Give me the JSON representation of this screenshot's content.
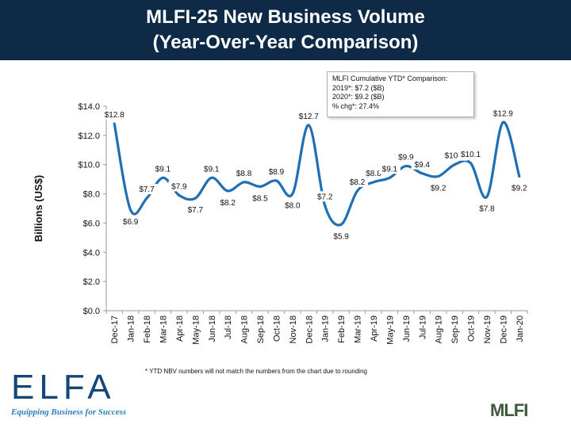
{
  "header": {
    "title_line1": "MLFI-25 New Business Volume",
    "title_line2": "(Year-Over-Year Comparison)",
    "bg_color": "#0e2a47"
  },
  "note": {
    "line1": "MLFI Cumulative YTD* Comparison:",
    "line2": "2019*: $7.2 ($B)",
    "line3": "2020*: $9.2 ($B)",
    "line4": "% chg*: 27.4%"
  },
  "footnote": "*  YTD NBV numbers will not match the numbers from the chart due to rounding",
  "logos": {
    "elfa_text": "ELFA",
    "elfa_tagline": "Equipping Business for Success",
    "mlfi_text": "MLFI"
  },
  "chart_data": {
    "type": "line",
    "title": "",
    "xlabel": "",
    "ylabel": "Billions (US$)",
    "ylim": [
      0,
      14
    ],
    "yticks": [
      0,
      2,
      4,
      6,
      8,
      10,
      12,
      14
    ],
    "ytick_labels": [
      "$0.0",
      "$2.0",
      "$4.0",
      "$6.0",
      "$8.0",
      "$10.0",
      "$12.0",
      "$14.0"
    ],
    "grid": false,
    "line_color": "#1f6fb5",
    "categories": [
      "Dec-17",
      "Jan-18",
      "Feb-18",
      "Mar-18",
      "Apr-18",
      "May-18",
      "Jun-18",
      "Jul-18",
      "Aug-18",
      "Sep-18",
      "Oct-18",
      "Nov-18",
      "Dec-18",
      "Jan-19",
      "Feb-19",
      "Mar-19",
      "Apr-19",
      "May-19",
      "Jun-19",
      "Jul-19",
      "Aug-19",
      "Sep-19",
      "Oct-19",
      "Nov-19",
      "Dec-19",
      "Jan-20"
    ],
    "values": [
      12.8,
      6.9,
      7.7,
      9.1,
      7.9,
      7.7,
      9.1,
      8.2,
      8.8,
      8.5,
      8.9,
      8.0,
      12.7,
      7.2,
      5.9,
      8.2,
      8.8,
      9.1,
      9.9,
      9.4,
      9.2,
      10.0,
      10.1,
      7.8,
      12.9,
      9.2
    ],
    "data_labels": [
      "$12.8",
      "$6.9",
      "$7.7",
      "$9.1",
      "$7.9",
      "$7.7",
      "$9.1",
      "$8.2",
      "$8.8",
      "$8.5",
      "$8.9",
      "$8.0",
      "$12.7",
      "$7.2",
      "$5.9",
      "$8.2",
      "$8.8",
      "$9.1",
      "$9.9",
      "$9.4",
      "$9.2",
      "$10.0",
      "$10.1",
      "$7.8",
      "$12.9",
      "$9.2"
    ]
  }
}
